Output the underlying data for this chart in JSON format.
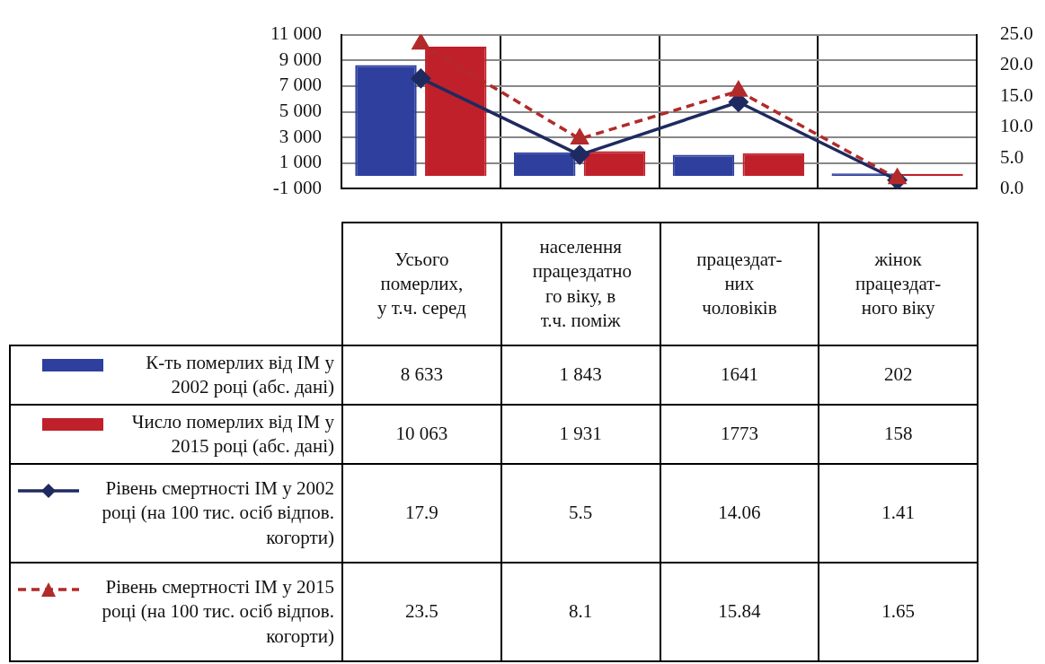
{
  "chart_data": {
    "type": "bar",
    "categories": [
      "Усього померлих, у т.ч. серед",
      "населення працездатно го віку,     в т.ч. поміж",
      "працездат-них чоловіків",
      "жінок працездат-ного віку"
    ],
    "series": [
      {
        "name": "К-ть померлих від ІМ у 2002 році (абс. дані)",
        "color": "#2e3f9e",
        "values": [
          8633,
          1843,
          1641,
          202
        ],
        "value_labels": [
          "8 633",
          "1 843",
          "1641",
          "202"
        ]
      },
      {
        "name": "Число померлих від ІМ у 2015 році (абс. дані)",
        "color": "#c0202a",
        "values": [
          10063,
          1931,
          1773,
          158
        ],
        "value_labels": [
          "10 063",
          "1 931",
          "1773",
          "158"
        ]
      },
      {
        "name": "Рівень смертності ІМ у 2002 році (на 100 тис. осіб відпов. когорти)",
        "type": "line",
        "axis": "y2",
        "color": "#1f2a60",
        "marker": "diamond",
        "line_style": "solid",
        "values": [
          17.9,
          5.5,
          14.06,
          1.41
        ],
        "value_labels": [
          "17.9",
          "5.5",
          "14.06",
          "1.41"
        ]
      },
      {
        "name": "Рівень смертності ІМ у 2015 році (на 100 тис. осіб відпов. когорти)",
        "type": "line",
        "axis": "y2",
        "color": "#b22a2a",
        "marker": "triangle",
        "line_style": "dashed",
        "values": [
          23.5,
          8.1,
          15.84,
          1.65
        ],
        "value_labels": [
          "23.5",
          "8.1",
          "15.84",
          "1.65"
        ]
      }
    ],
    "ylim": [
      -1000,
      11000
    ],
    "yticks": [
      {
        "value": -1000,
        "label": "-1 000"
      },
      {
        "value": 1000,
        "label": "1 000"
      },
      {
        "value": 3000,
        "label": "3 000"
      },
      {
        "value": 5000,
        "label": "5 000"
      },
      {
        "value": 7000,
        "label": "7 000"
      },
      {
        "value": 9000,
        "label": "9 000"
      },
      {
        "value": 11000,
        "label": "11 000"
      }
    ],
    "y2lim": [
      0,
      25
    ],
    "y2ticks": [
      {
        "value": 0,
        "label": "0.0"
      },
      {
        "value": 5,
        "label": "5.0"
      },
      {
        "value": 10,
        "label": "10.0"
      },
      {
        "value": 15,
        "label": "15.0"
      },
      {
        "value": 20,
        "label": "20.0"
      },
      {
        "value": 25,
        "label": "25.0"
      }
    ],
    "grid": true,
    "legend": "bottom"
  }
}
